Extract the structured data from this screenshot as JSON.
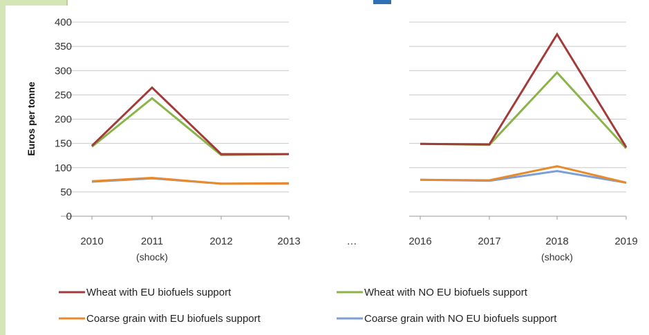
{
  "colors": {
    "wheat_eu": "#a33a3a",
    "wheat_no_eu": "#8ab34a",
    "coarse_eu": "#e8892b",
    "coarse_no_eu": "#7b9fd4",
    "grid": "#c8c8c8",
    "frame_green": "#d4e6b5"
  },
  "chart_data": {
    "type": "line",
    "ylabel": "Euros per tonne",
    "ylim": [
      0,
      400
    ],
    "yticks": [
      0,
      50,
      100,
      150,
      200,
      250,
      300,
      350,
      400
    ],
    "grid": true,
    "legend_position": "bottom",
    "separator_label": "…",
    "panels": [
      {
        "x": [
          "2010",
          "2011",
          "2012",
          "2013"
        ],
        "x_sublabels": [
          "",
          "(shock)",
          "",
          ""
        ],
        "series": [
          {
            "name": "Wheat with EU biofuels support",
            "values": [
              145,
              265,
              128,
              128
            ]
          },
          {
            "name": "Wheat with NO EU biofuels support",
            "values": [
              143,
              243,
              126,
              128
            ]
          },
          {
            "name": "Coarse grain with EU biofuels support",
            "values": [
              72,
              79,
              67,
              68
            ]
          },
          {
            "name": "Coarse grain with NO EU biofuels support",
            "values": [
              71,
              78,
              67,
              67
            ]
          }
        ]
      },
      {
        "x": [
          "2016",
          "2017",
          "2018",
          "2019"
        ],
        "x_sublabels": [
          "",
          "",
          "(shock)",
          ""
        ],
        "series": [
          {
            "name": "Wheat with EU biofuels support",
            "values": [
              149,
              148,
              375,
              142
            ]
          },
          {
            "name": "Wheat with NO EU biofuels support",
            "values": [
              149,
              147,
              296,
              140
            ]
          },
          {
            "name": "Coarse grain with EU biofuels support",
            "values": [
              75,
              74,
              103,
              69
            ]
          },
          {
            "name": "Coarse grain with NO EU biofuels support",
            "values": [
              75,
              73,
              93,
              69
            ]
          }
        ]
      }
    ],
    "legend": [
      "Wheat with EU biofuels support",
      "Wheat with NO EU biofuels support",
      "Coarse grain with EU biofuels support",
      "Coarse grain with NO EU biofuels support"
    ]
  }
}
